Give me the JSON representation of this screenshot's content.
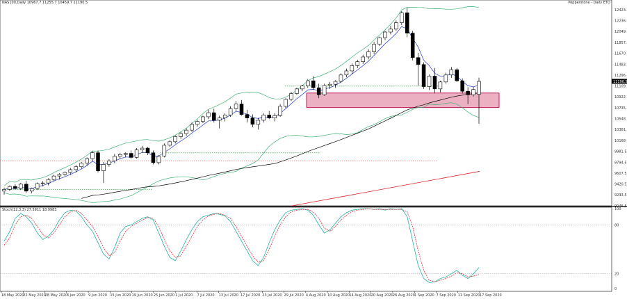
{
  "header": {
    "symbol_line": "NAS100,Daily  10967.7 11255.7 10459.7 11190.5",
    "broker": "Pepperstone - Daily ETO"
  },
  "osc_header": "Stoch(12,3,3) 27.5911 18.9983",
  "colors": {
    "bull_body": "#ffffff",
    "bear_body": "#000000",
    "wick": "#000000",
    "bollinger": "#3cb371",
    "ema": "#3a4fd0",
    "sma": "#000000",
    "trend_red": "#e02020",
    "zone_fill": "#e7a3b8",
    "zone_stroke": "#c2185b",
    "stoch_main": "#20b2aa",
    "stoch_signal": "#e03030",
    "price_tag_bg": "#000000",
    "price_tag_fg": "#ffffff"
  },
  "chart_data": {
    "type": "candlestick",
    "price_axis": {
      "ticks": [
        "12423.5",
        "12236.5",
        "12049.5",
        "11857.5",
        "11670.5",
        "11483.5",
        "11296.5",
        "11109.5",
        "10922.5",
        "10735.5",
        "10548.5",
        "10361.5",
        "10168.5",
        "9981.5",
        "9794.5",
        "9607.5",
        "9420.5",
        "9233.5",
        "9046.5"
      ],
      "current_price": "11190.5",
      "range": [
        9000,
        12500
      ]
    },
    "time_axis": {
      "labels": [
        "18 May 2020",
        "22 May 2020",
        "28 May 2020",
        "3 Jun 2020",
        "9 Jun 2020",
        "15 Jun 2020",
        "19 Jun 2020",
        "25 Jun 2020",
        "1 Jul 2020",
        "7 Jul 2020",
        "13 Jul 2020",
        "17 Jul 2020",
        "23 Jul 2020",
        "29 Jul 2020",
        "4 Aug 2020",
        "10 Aug 2020",
        "14 Aug 2020",
        "20 Aug 2020",
        "26 Aug 2020",
        "1 Sep 2020",
        "7 Sep 2020",
        "11 Sep 2020",
        "17 Sep 2020"
      ]
    },
    "candles": [
      {
        "o": 9300,
        "h": 9360,
        "l": 9240,
        "c": 9330
      },
      {
        "o": 9330,
        "h": 9400,
        "l": 9300,
        "c": 9380
      },
      {
        "o": 9380,
        "h": 9420,
        "l": 9330,
        "c": 9345
      },
      {
        "o": 9345,
        "h": 9440,
        "l": 9320,
        "c": 9420
      },
      {
        "o": 9420,
        "h": 9480,
        "l": 9270,
        "c": 9300
      },
      {
        "o": 9300,
        "h": 9360,
        "l": 9260,
        "c": 9345
      },
      {
        "o": 9345,
        "h": 9450,
        "l": 9320,
        "c": 9430
      },
      {
        "o": 9430,
        "h": 9470,
        "l": 9380,
        "c": 9440
      },
      {
        "o": 9440,
        "h": 9520,
        "l": 9400,
        "c": 9500
      },
      {
        "o": 9500,
        "h": 9580,
        "l": 9470,
        "c": 9560
      },
      {
        "o": 9560,
        "h": 9610,
        "l": 9500,
        "c": 9590
      },
      {
        "o": 9590,
        "h": 9640,
        "l": 9560,
        "c": 9620
      },
      {
        "o": 9620,
        "h": 9700,
        "l": 9580,
        "c": 9670
      },
      {
        "o": 9670,
        "h": 9750,
        "l": 9620,
        "c": 9720
      },
      {
        "o": 9720,
        "h": 9800,
        "l": 9690,
        "c": 9780
      },
      {
        "o": 9780,
        "h": 9880,
        "l": 9740,
        "c": 9860
      },
      {
        "o": 9860,
        "h": 9990,
        "l": 9820,
        "c": 9960
      },
      {
        "o": 9960,
        "h": 10000,
        "l": 9620,
        "c": 9650
      },
      {
        "o": 9650,
        "h": 9800,
        "l": 9440,
        "c": 9760
      },
      {
        "o": 9760,
        "h": 9850,
        "l": 9720,
        "c": 9820
      },
      {
        "o": 9820,
        "h": 9940,
        "l": 9780,
        "c": 9900
      },
      {
        "o": 9900,
        "h": 9960,
        "l": 9860,
        "c": 9930
      },
      {
        "o": 9930,
        "h": 9970,
        "l": 9880,
        "c": 9950
      },
      {
        "o": 9950,
        "h": 10000,
        "l": 9860,
        "c": 9880
      },
      {
        "o": 9880,
        "h": 10040,
        "l": 9860,
        "c": 10010
      },
      {
        "o": 10010,
        "h": 10080,
        "l": 9960,
        "c": 10040
      },
      {
        "o": 10040,
        "h": 10060,
        "l": 9920,
        "c": 9960
      },
      {
        "o": 9960,
        "h": 10000,
        "l": 9760,
        "c": 9790
      },
      {
        "o": 9790,
        "h": 9920,
        "l": 9760,
        "c": 9900
      },
      {
        "o": 9900,
        "h": 10120,
        "l": 9880,
        "c": 10090
      },
      {
        "o": 10090,
        "h": 10180,
        "l": 10060,
        "c": 10150
      },
      {
        "o": 10150,
        "h": 10260,
        "l": 10120,
        "c": 10240
      },
      {
        "o": 10240,
        "h": 10320,
        "l": 10200,
        "c": 10290
      },
      {
        "o": 10290,
        "h": 10380,
        "l": 10250,
        "c": 10350
      },
      {
        "o": 10350,
        "h": 10480,
        "l": 10320,
        "c": 10450
      },
      {
        "o": 10450,
        "h": 10530,
        "l": 10410,
        "c": 10500
      },
      {
        "o": 10500,
        "h": 10600,
        "l": 10470,
        "c": 10580
      },
      {
        "o": 10580,
        "h": 10700,
        "l": 10540,
        "c": 10650
      },
      {
        "o": 10650,
        "h": 10720,
        "l": 10480,
        "c": 10520
      },
      {
        "o": 10520,
        "h": 10600,
        "l": 10380,
        "c": 10560
      },
      {
        "o": 10560,
        "h": 10640,
        "l": 10500,
        "c": 10610
      },
      {
        "o": 10610,
        "h": 10760,
        "l": 10580,
        "c": 10720
      },
      {
        "o": 10720,
        "h": 10850,
        "l": 10680,
        "c": 10800
      },
      {
        "o": 10800,
        "h": 10870,
        "l": 10600,
        "c": 10620
      },
      {
        "o": 10620,
        "h": 10700,
        "l": 10480,
        "c": 10560
      },
      {
        "o": 10560,
        "h": 10620,
        "l": 10400,
        "c": 10450
      },
      {
        "o": 10450,
        "h": 10560,
        "l": 10360,
        "c": 10520
      },
      {
        "o": 10520,
        "h": 10640,
        "l": 10480,
        "c": 10610
      },
      {
        "o": 10610,
        "h": 10680,
        "l": 10540,
        "c": 10560
      },
      {
        "o": 10560,
        "h": 10640,
        "l": 10500,
        "c": 10600
      },
      {
        "o": 10600,
        "h": 10800,
        "l": 10580,
        "c": 10760
      },
      {
        "o": 10760,
        "h": 10900,
        "l": 10730,
        "c": 10880
      },
      {
        "o": 10880,
        "h": 11010,
        "l": 10850,
        "c": 10980
      },
      {
        "o": 10980,
        "h": 11080,
        "l": 10960,
        "c": 11060
      },
      {
        "o": 11060,
        "h": 11130,
        "l": 11020,
        "c": 11110
      },
      {
        "o": 11110,
        "h": 11230,
        "l": 11080,
        "c": 11200
      },
      {
        "o": 11200,
        "h": 11280,
        "l": 11040,
        "c": 11080
      },
      {
        "o": 11080,
        "h": 11150,
        "l": 10900,
        "c": 10960
      },
      {
        "o": 10960,
        "h": 11150,
        "l": 10940,
        "c": 11120
      },
      {
        "o": 11120,
        "h": 11180,
        "l": 11060,
        "c": 11140
      },
      {
        "o": 11140,
        "h": 11210,
        "l": 11080,
        "c": 11190
      },
      {
        "o": 11190,
        "h": 11330,
        "l": 11160,
        "c": 11300
      },
      {
        "o": 11300,
        "h": 11410,
        "l": 11260,
        "c": 11370
      },
      {
        "o": 11370,
        "h": 11500,
        "l": 11320,
        "c": 11460
      },
      {
        "o": 11460,
        "h": 11560,
        "l": 11420,
        "c": 11530
      },
      {
        "o": 11530,
        "h": 11650,
        "l": 11490,
        "c": 11610
      },
      {
        "o": 11610,
        "h": 11740,
        "l": 11570,
        "c": 11700
      },
      {
        "o": 11700,
        "h": 11870,
        "l": 11660,
        "c": 11830
      },
      {
        "o": 11830,
        "h": 11960,
        "l": 11800,
        "c": 11940
      },
      {
        "o": 11940,
        "h": 12060,
        "l": 11900,
        "c": 12040
      },
      {
        "o": 12040,
        "h": 12150,
        "l": 12000,
        "c": 12090
      },
      {
        "o": 12090,
        "h": 12240,
        "l": 12060,
        "c": 12200
      },
      {
        "o": 12200,
        "h": 12400,
        "l": 12160,
        "c": 12370
      },
      {
        "o": 12370,
        "h": 12460,
        "l": 11950,
        "c": 12020
      },
      {
        "o": 12020,
        "h": 12060,
        "l": 11550,
        "c": 11600
      },
      {
        "o": 11600,
        "h": 11680,
        "l": 11120,
        "c": 11480
      },
      {
        "o": 11480,
        "h": 11520,
        "l": 11060,
        "c": 11100
      },
      {
        "o": 11100,
        "h": 11310,
        "l": 11040,
        "c": 11280
      },
      {
        "o": 11280,
        "h": 11420,
        "l": 10980,
        "c": 11060
      },
      {
        "o": 11060,
        "h": 11200,
        "l": 11000,
        "c": 11180
      },
      {
        "o": 11180,
        "h": 11340,
        "l": 11150,
        "c": 11300
      },
      {
        "o": 11300,
        "h": 11440,
        "l": 11250,
        "c": 11390
      },
      {
        "o": 11390,
        "h": 11420,
        "l": 11180,
        "c": 11200
      },
      {
        "o": 11200,
        "h": 11240,
        "l": 10980,
        "c": 11020
      },
      {
        "o": 11020,
        "h": 11090,
        "l": 10800,
        "c": 10960
      },
      {
        "o": 10960,
        "h": 11100,
        "l": 10930,
        "c": 11050
      },
      {
        "o": 10967,
        "h": 11255,
        "l": 10459,
        "c": 11190
      }
    ],
    "overlays": {
      "ema_fast": "blue",
      "sma_slow": "black",
      "bollinger": "green",
      "trendline": "red"
    },
    "support_zone": {
      "from": 10740,
      "to": 10990
    },
    "levels": [
      {
        "price": 11109,
        "style": "dotted",
        "color": "green"
      },
      {
        "price": 9960,
        "style": "dotted",
        "color": "green"
      },
      {
        "price": 9820,
        "style": "dotted",
        "color": "red"
      },
      {
        "price": 9330,
        "style": "dotted",
        "color": "green"
      }
    ],
    "stochastic": {
      "name": "Stoch(12,3,3)",
      "main_value": "27.5911",
      "signal_value": "18.9983",
      "axis_labels": [
        "100",
        "80",
        "20",
        "0"
      ],
      "levels": [
        80,
        20
      ],
      "main": [
        60,
        72,
        88,
        94,
        90,
        82,
        70,
        62,
        66,
        74,
        86,
        95,
        98,
        97,
        90,
        80,
        72,
        58,
        44,
        38,
        52,
        70,
        78,
        80,
        84,
        88,
        90,
        86,
        70,
        54,
        40,
        36,
        48,
        62,
        74,
        84,
        90,
        92,
        94,
        93,
        91,
        84,
        72,
        60,
        48,
        36,
        30,
        40,
        58,
        74,
        86,
        95,
        98,
        99,
        100,
        98,
        92,
        80,
        70,
        74,
        82,
        90,
        95,
        98,
        99,
        100,
        100,
        99,
        100,
        98,
        100,
        99,
        100,
        90,
        60,
        30,
        14,
        9,
        10,
        14,
        16,
        20,
        24,
        18,
        14,
        20,
        27.6
      ],
      "signal": [
        55,
        64,
        80,
        90,
        92,
        88,
        78,
        68,
        64,
        70,
        80,
        90,
        96,
        98,
        94,
        86,
        78,
        66,
        52,
        42,
        46,
        60,
        72,
        78,
        82,
        86,
        89,
        88,
        78,
        62,
        48,
        40,
        42,
        54,
        66,
        78,
        86,
        91,
        93,
        94,
        92,
        88,
        78,
        66,
        54,
        42,
        34,
        36,
        50,
        66,
        80,
        90,
        96,
        98,
        99,
        99,
        96,
        88,
        76,
        72,
        78,
        86,
        92,
        96,
        98,
        99,
        100,
        99,
        99,
        99,
        99,
        99,
        99,
        96,
        78,
        48,
        24,
        12,
        10,
        12,
        14,
        17,
        21,
        20,
        16,
        17,
        19.0
      ]
    }
  }
}
